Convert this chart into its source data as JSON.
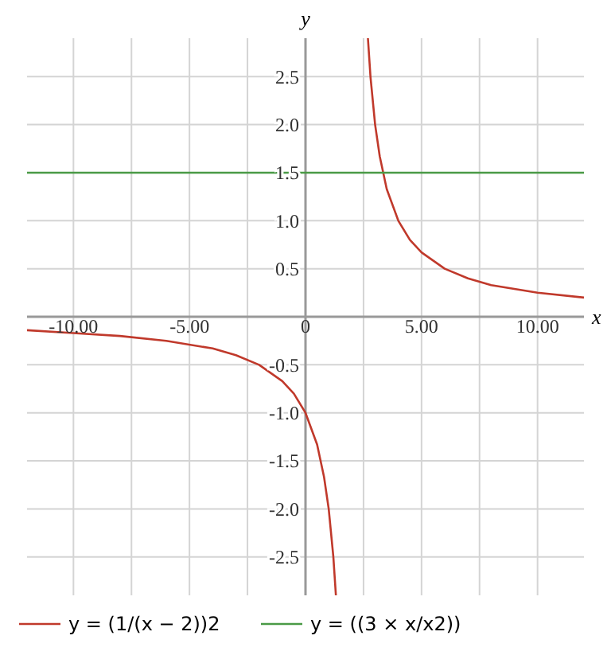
{
  "chart_data": {
    "type": "line",
    "xlabel": "x",
    "ylabel": "y",
    "xlim": [
      -12,
      12
    ],
    "ylim": [
      -2.9,
      2.9
    ],
    "xticks": [
      {
        "value": -10,
        "label": "-10.00"
      },
      {
        "value": -7.5,
        "label": null
      },
      {
        "value": -5,
        "label": "-5.00"
      },
      {
        "value": -2.5,
        "label": null
      },
      0,
      {
        "value": 2.5,
        "label": null
      },
      {
        "value": 5,
        "label": "5.00"
      },
      {
        "value": 7.5,
        "label": null
      },
      {
        "value": 10,
        "label": "10.00"
      }
    ],
    "yticks": [
      -2.5,
      {
        "value": -2,
        "label": "-2.0"
      },
      -1.5,
      {
        "value": -1,
        "label": "-1.0"
      },
      -0.5,
      {
        "value": 0,
        "label": null
      },
      0.5,
      {
        "value": 1,
        "label": "1.0"
      },
      1.5,
      {
        "value": 2,
        "label": "2.0"
      },
      2.5
    ],
    "grid": true,
    "legend": "bottom",
    "line_style": "solid",
    "marker": "none",
    "series": [
      {
        "name": "y = (1/(x − 2))2",
        "color": "#c0392b",
        "x": [
          -12,
          -10,
          -8,
          -6,
          -4,
          -3,
          -2,
          -1,
          -0.5,
          0,
          0.5,
          0.8,
          1,
          1.2,
          1.31,
          2,
          2.69,
          2.8,
          3,
          3.2,
          3.5,
          4,
          4.5,
          5,
          6,
          7,
          8,
          10,
          12
        ],
        "values": [
          -0.14,
          -0.17,
          -0.2,
          -0.25,
          -0.33,
          -0.4,
          -0.5,
          -0.67,
          -0.8,
          -1,
          -1.33,
          -1.67,
          -2,
          -2.5,
          -2.9,
          null,
          2.9,
          2.5,
          2,
          1.67,
          1.33,
          1,
          0.8,
          0.67,
          0.5,
          0.4,
          0.33,
          0.25,
          0.2
        ]
      },
      {
        "name": "y = ((3 × x/x2))",
        "color": "#4a9a46",
        "x": [
          -12,
          12
        ],
        "values": [
          1.5,
          1.5
        ]
      }
    ]
  }
}
